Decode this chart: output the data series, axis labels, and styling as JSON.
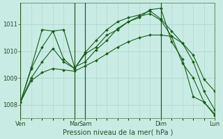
{
  "background_color": "#c8ece4",
  "grid_color": "#a8d4cc",
  "line_color": "#1a5c1a",
  "marker_color": "#1a5c1a",
  "xlabel": "Pression niveau de la mer( hPa )",
  "ylim": [
    1007.5,
    1011.8
  ],
  "yticks": [
    1008,
    1009,
    1010,
    1011
  ],
  "vline_positions": [
    0,
    5,
    6,
    13,
    18
  ],
  "xtick_labels_and_pos": [
    [
      0,
      "Ven"
    ],
    [
      5,
      "Mar"
    ],
    [
      6,
      "Sam"
    ],
    [
      13,
      "Dim"
    ],
    [
      18,
      "Lun"
    ]
  ],
  "series": [
    {
      "x": [
        0,
        1,
        2,
        3,
        4,
        5,
        6,
        7,
        8,
        9,
        10,
        11,
        12,
        13,
        14,
        15,
        16,
        17,
        18
      ],
      "y": [
        1008.1,
        1009.4,
        1010.8,
        1010.75,
        1009.7,
        1009.35,
        1009.9,
        1010.15,
        1010.6,
        1010.8,
        1011.1,
        1011.25,
        1011.55,
        1011.6,
        1010.35,
        1009.7,
        1008.3,
        1008.1,
        1007.6
      ]
    },
    {
      "x": [
        0,
        1,
        2,
        3,
        4,
        5,
        6,
        7,
        8,
        9,
        10,
        11,
        12,
        13,
        14,
        15,
        16,
        17,
        18
      ],
      "y": [
        1008.1,
        1009.35,
        1010.15,
        1010.75,
        1010.8,
        1009.4,
        1009.6,
        1010.05,
        1010.4,
        1010.85,
        1011.1,
        1011.3,
        1011.4,
        1011.15,
        1010.55,
        1009.55,
        1009.0,
        1008.1,
        1007.65
      ]
    },
    {
      "x": [
        0,
        1,
        2,
        3,
        4,
        5,
        6,
        7,
        8,
        9,
        10,
        11,
        12,
        13,
        14,
        15,
        16,
        17,
        18
      ],
      "y": [
        1008.1,
        1009.0,
        1009.6,
        1010.1,
        1009.6,
        1009.35,
        1009.95,
        1010.4,
        1010.8,
        1011.1,
        1011.25,
        1011.35,
        1011.5,
        1011.2,
        1010.75,
        1010.3,
        1009.6,
        1008.5,
        1007.8
      ]
    },
    {
      "x": [
        0,
        1,
        2,
        3,
        4,
        5,
        6,
        7,
        8,
        9,
        10,
        11,
        12,
        13,
        14,
        15,
        16,
        17,
        18
      ],
      "y": [
        1008.1,
        1008.9,
        1009.2,
        1009.35,
        1009.3,
        1009.25,
        1009.45,
        1009.65,
        1009.9,
        1010.15,
        1010.35,
        1010.5,
        1010.6,
        1010.6,
        1010.55,
        1010.3,
        1009.85,
        1008.95,
        1008.5
      ]
    }
  ]
}
